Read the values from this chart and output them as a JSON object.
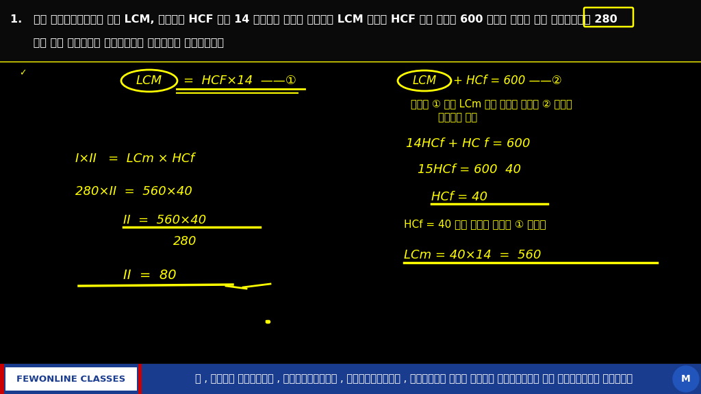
{
  "bg_color": "#000000",
  "yellow": "#FFFF00",
  "white": "#FFFFFF",
  "footer_bg": "#1a3c8f",
  "footer_red": "#cc0000",
  "footer_brand": "FEWONLINE CLASSES",
  "footer_text": "न , मध्य प्रदेश , उत्तराखंड , छत्तीसगढ़ , झारखंड तथा अन्य राज्यों से संबंधित होगा।",
  "title_line1": "1.   दो संख्याओं का LCM, उनके HCF से 14 गुना है। उनके LCM तथा HCF का योग 600 है। यदि एक संख्या 280",
  "title_line2": "      है तो दूसरी संख्या ज्ञात कीजिए।"
}
